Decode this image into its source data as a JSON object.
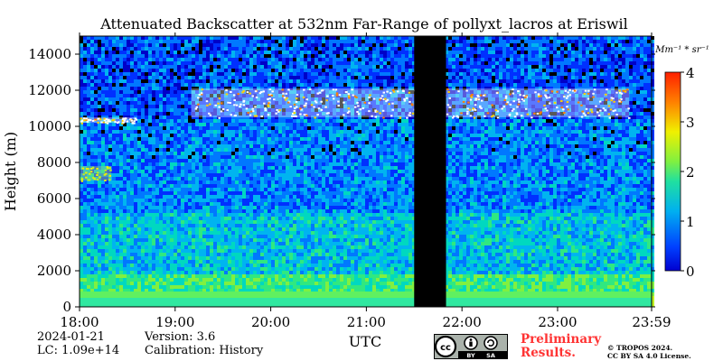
{
  "chart_data": {
    "type": "heatmap",
    "title": "Attenuated Backscatter at 532nm Far-Range of pollyxt_lacros at Eriswil",
    "xlabel": "UTC",
    "ylabel": "Height (m)",
    "x_ticks": [
      "18:00",
      "19:00",
      "20:00",
      "21:00",
      "22:00",
      "23:00",
      "23:59"
    ],
    "y_ticks": [
      0,
      2000,
      4000,
      6000,
      8000,
      10000,
      12000,
      14000
    ],
    "xlim": [
      "18:00",
      "23:59"
    ],
    "ylim": [
      0,
      15000
    ],
    "colorbar": {
      "unit_label": "Mm⁻¹ * sr⁻¹",
      "ticks": [
        0,
        1,
        2,
        3,
        4
      ],
      "range": [
        0,
        4
      ],
      "colormap": "jet"
    },
    "no_data_intervals": [
      [
        "21:30",
        "21:50"
      ]
    ],
    "features": [
      {
        "desc": "cirrus layer",
        "x_start": "19:10",
        "x_end": "23:45",
        "height_min": 10500,
        "height_max": 12100
      },
      {
        "desc": "thin cloud",
        "x_start": "18:00",
        "x_end": "18:35",
        "height_min": 10200,
        "height_max": 10500
      },
      {
        "desc": "aerosol layer",
        "x_start": "18:00",
        "x_end": "18:20",
        "height_min": 7000,
        "height_max": 7800
      }
    ]
  },
  "info": {
    "date": "2024-01-21",
    "lc": "LC: 1.09e+14",
    "version": "Version: 3.6",
    "calibration": "Calibration: History"
  },
  "license": {
    "preliminary_line1": "Preliminary",
    "preliminary_line2": "Results.",
    "copyright": "© TROPOS 2024.",
    "license_text": "CC BY SA 4.0 License.",
    "badge_by": "BY",
    "badge_sa": "SA"
  }
}
